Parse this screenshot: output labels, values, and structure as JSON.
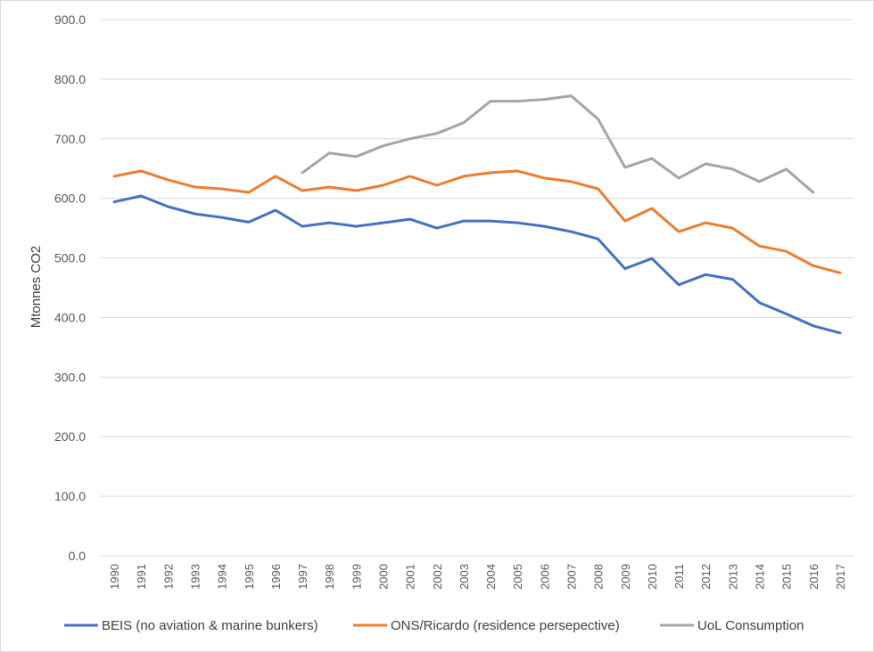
{
  "chart_data": {
    "type": "line",
    "title": "",
    "xlabel": "",
    "ylabel": "Mtonnes CO2",
    "ylim": [
      0,
      900
    ],
    "ytick_step": 100,
    "ytick_decimals": 1,
    "grid": true,
    "legend_position": "bottom",
    "categories": [
      "1990",
      "1991",
      "1992",
      "1993",
      "1994",
      "1995",
      "1996",
      "1997",
      "1998",
      "1999",
      "2000",
      "2001",
      "2002",
      "2003",
      "2004",
      "2005",
      "2006",
      "2007",
      "2008",
      "2009",
      "2010",
      "2011",
      "2012",
      "2013",
      "2014",
      "2015",
      "2016",
      "2017"
    ],
    "series": [
      {
        "name": "BEIS (no aviation & marine bunkers)",
        "color": "#4472c4",
        "values": [
          594,
          604,
          586,
          574,
          568,
          560,
          580,
          553,
          559,
          553,
          559,
          565,
          550,
          562,
          562,
          559,
          553,
          544,
          532,
          482,
          499,
          455,
          472,
          464,
          425,
          406,
          386,
          374
        ]
      },
      {
        "name": "ONS/Ricardo (residence persepective)",
        "color": "#ed7d31",
        "values": [
          637,
          646,
          631,
          619,
          616,
          610,
          637,
          613,
          619,
          613,
          622,
          637,
          622,
          637,
          643,
          646,
          634,
          628,
          616,
          562,
          583,
          544,
          559,
          550,
          520,
          511,
          487,
          475
        ]
      },
      {
        "name": "UoL Consumption",
        "color": "#a5a5a5",
        "values": [
          null,
          null,
          null,
          null,
          null,
          null,
          null,
          643,
          676,
          670,
          688,
          700,
          709,
          727,
          763,
          763,
          766,
          772,
          733,
          652,
          667,
          634,
          658,
          649,
          628,
          649,
          610,
          null
        ]
      }
    ]
  }
}
